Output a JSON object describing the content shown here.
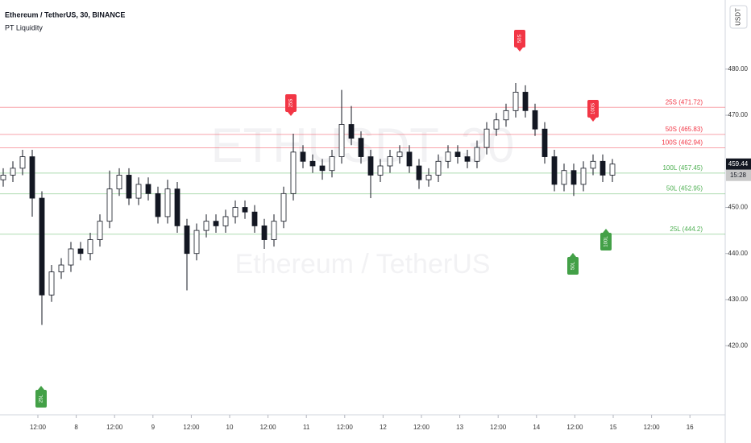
{
  "chart_data": {
    "type": "candlestick",
    "title": "Ethereum / TetherUS, 30, BINANCE",
    "subtitle": "PT Liquidity",
    "watermark": "ETHUSDT, 30",
    "watermark_sub": "Ethereum / TetherUS",
    "currency": "USDT",
    "last_price_label": "459.44",
    "countdown": "15:28",
    "categories": [
      "12:00",
      "8",
      "12:00",
      "9",
      "12:00",
      "10",
      "12:00",
      "11",
      "12:00",
      "12",
      "12:00",
      "13",
      "12:00",
      "14",
      "12:00",
      "15",
      "12:00",
      "16"
    ],
    "ylim": [
      405,
      495
    ],
    "yticks": [
      {
        "value": 420,
        "label": "420.00"
      },
      {
        "value": 430,
        "label": "430.00"
      },
      {
        "value": 440,
        "label": "440.00"
      },
      {
        "value": 450,
        "label": "450.00"
      },
      {
        "value": 470,
        "label": "470.00"
      },
      {
        "value": 480,
        "label": "480.00"
      }
    ],
    "open": [
      456,
      457,
      458.5,
      461,
      452,
      431,
      436,
      437.5,
      441,
      440,
      443,
      447,
      454,
      457,
      452,
      455,
      453,
      448,
      454,
      446,
      440,
      445,
      447,
      446,
      448,
      450,
      449,
      446,
      443,
      447,
      453,
      462,
      460,
      459,
      458,
      461,
      468,
      465,
      461,
      457,
      459,
      461,
      462,
      459,
      456,
      457,
      460,
      462,
      461,
      460,
      463,
      467,
      469,
      471,
      475,
      471,
      467,
      461,
      455,
      458,
      455,
      458.5,
      460,
      457
    ],
    "high": [
      458.5,
      460,
      462.5,
      462.5,
      453.5,
      437.5,
      439,
      442.5,
      442.5,
      444.5,
      448.5,
      458,
      458.5,
      458.5,
      456.5,
      456.5,
      454.5,
      456,
      455.5,
      447.5,
      446.5,
      448.5,
      448.5,
      449.5,
      451.5,
      451.5,
      450.5,
      447.5,
      448.5,
      454.5,
      466,
      463.5,
      461.5,
      460.5,
      462.5,
      475.5,
      472,
      466.5,
      462.5,
      460.5,
      462.5,
      463.5,
      463.5,
      460.5,
      458.5,
      461.5,
      463.5,
      463.5,
      462.5,
      464.5,
      468.5,
      470.5,
      472.5,
      477,
      476.5,
      472.5,
      468.5,
      462.5,
      459.5,
      459.5,
      460,
      461.5,
      461.5,
      460.5
    ],
    "low": [
      454.5,
      455.5,
      457,
      448,
      424.5,
      429.5,
      434.5,
      436,
      438.5,
      438.5,
      441.5,
      445.5,
      452.5,
      450.5,
      450.5,
      451.5,
      446.5,
      446.5,
      444.5,
      432,
      438.5,
      443.5,
      444.5,
      444.5,
      446.5,
      447.5,
      444.5,
      441,
      441.5,
      445.5,
      451.5,
      458.5,
      457.5,
      456,
      456.5,
      459.5,
      463.5,
      459.5,
      452,
      455.5,
      457.5,
      459.5,
      457.5,
      454,
      454.5,
      455.5,
      458.5,
      459.5,
      458.5,
      458.5,
      461.5,
      465.5,
      467.5,
      469.5,
      469.5,
      465.5,
      459.5,
      453.5,
      453.5,
      452.5,
      453.5,
      457,
      455.5,
      455.5
    ],
    "close": [
      457,
      458.5,
      461,
      452,
      431,
      436,
      437.5,
      441,
      440,
      443,
      447,
      454,
      457,
      452,
      455,
      453,
      448,
      454,
      446,
      440,
      445,
      447,
      446,
      448,
      450,
      449,
      446,
      443,
      447,
      453,
      462,
      460,
      459,
      458,
      461,
      468,
      465,
      461,
      457,
      459,
      461,
      462,
      459,
      456,
      457,
      460,
      462,
      461,
      460,
      463,
      467,
      469,
      471,
      475,
      471,
      467,
      461,
      455,
      458,
      455,
      458.5,
      460,
      457,
      459.4
    ],
    "levels": [
      {
        "name": "25S",
        "value": 471.72,
        "label": "25S (471.72)",
        "color": "#f23645"
      },
      {
        "name": "50S",
        "value": 465.83,
        "label": "50S (465.83)",
        "color": "#f23645"
      },
      {
        "name": "100S",
        "value": 462.94,
        "label": "100S (462.94)",
        "color": "#f23645"
      },
      {
        "name": "100L",
        "value": 457.45,
        "label": "100L (457.45)",
        "color": "#4caf50"
      },
      {
        "name": "50L",
        "value": 452.95,
        "label": "50L (452.95)",
        "color": "#4caf50"
      },
      {
        "name": "25L",
        "value": 444.2,
        "label": "25L (444.2)",
        "color": "#4caf50"
      }
    ],
    "markers": [
      {
        "text": "50S",
        "color": "#f23645"
      },
      {
        "text": "25S",
        "color": "#f23645"
      },
      {
        "text": "100S",
        "color": "#f23645"
      },
      {
        "text": "25L",
        "color": "#43a047"
      },
      {
        "text": "50L",
        "color": "#43a047"
      },
      {
        "text": "100L",
        "color": "#43a047"
      }
    ]
  }
}
